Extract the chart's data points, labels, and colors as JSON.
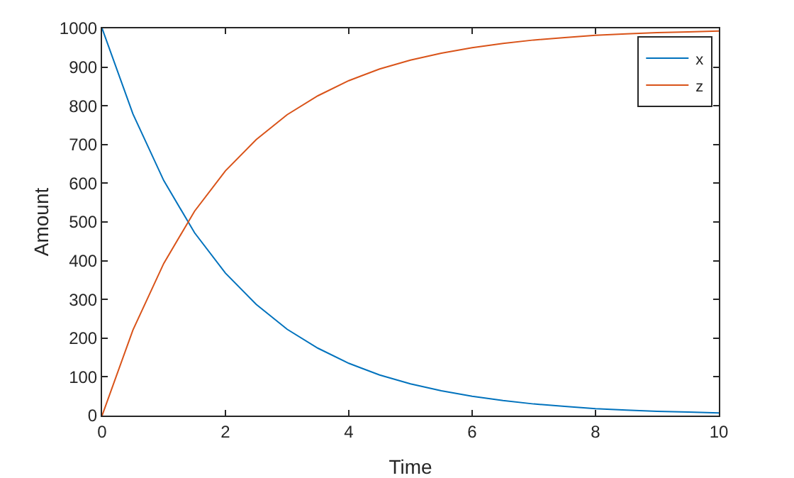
{
  "chart_data": {
    "type": "line",
    "xlabel": "Time",
    "ylabel": "Amount",
    "x": [
      0,
      0.5,
      1,
      1.5,
      2,
      2.5,
      3,
      3.5,
      4,
      4.5,
      5,
      5.5,
      6,
      6.5,
      7,
      7.5,
      8,
      8.5,
      9,
      9.5,
      10
    ],
    "series": [
      {
        "name": "x",
        "color": "#0072bd",
        "values": [
          1000,
          779,
          607,
          472,
          368,
          287,
          223,
          174,
          135,
          105,
          82,
          64,
          50,
          39,
          30,
          24,
          18,
          14,
          11,
          9,
          7
        ]
      },
      {
        "name": "z",
        "color": "#d95319",
        "values": [
          0,
          221,
          393,
          528,
          632,
          713,
          777,
          826,
          865,
          895,
          918,
          936,
          950,
          961,
          970,
          976,
          982,
          986,
          989,
          991,
          993
        ]
      }
    ],
    "xlim": [
      0,
      10
    ],
    "xticks": [
      0,
      2,
      4,
      6,
      8,
      10
    ],
    "ylim": [
      0,
      1000
    ],
    "yticks": [
      0,
      100,
      200,
      300,
      400,
      500,
      600,
      700,
      800,
      900,
      1000
    ],
    "grid": false,
    "legend": "top right",
    "marker": "none",
    "line_style": "solid"
  }
}
